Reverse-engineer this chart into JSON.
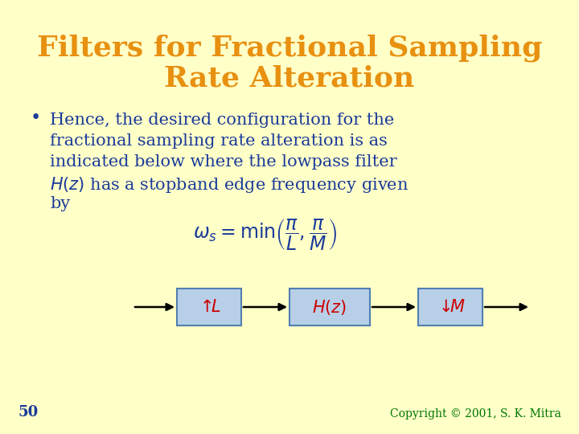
{
  "title_line1": "Filters for Fractional Sampling",
  "title_line2": "Rate Alteration",
  "title_color": "#E89010",
  "background_color": "#FFFFC8",
  "body_text_color": "#1a3a9a",
  "bullet_lines": [
    "Hence, the desired configuration for the",
    "fractional sampling rate alteration is as",
    "indicated below where the lowpass filter",
    "$H(z)$ has a stopband edge frequency given",
    "by"
  ],
  "block_fill_color": "#b8cfe8",
  "block_edge_color": "#5080b0",
  "block_label_color": "#cc0000",
  "arrow_color": "#000000",
  "page_number": "50",
  "copyright": "Copyright © 2001, S. K. Mitra",
  "copyright_color": "#007700"
}
